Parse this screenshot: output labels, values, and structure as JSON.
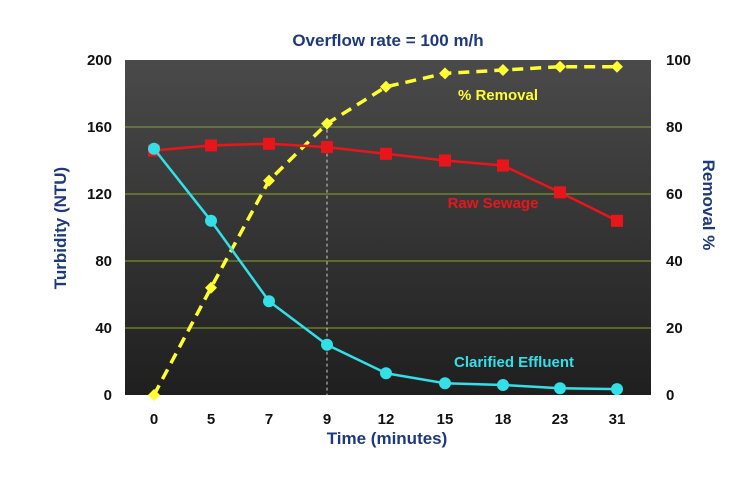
{
  "chart_data": {
    "type": "line",
    "title": "Overflow rate = 100 m/h",
    "xlabel": "Time (minutes)",
    "ylabel_left": "Turbidity (NTU)",
    "ylabel_right": "Removal %",
    "categories": [
      "0",
      "5",
      "7",
      "9",
      "12",
      "15",
      "18",
      "23",
      "31"
    ],
    "ylim_left": [
      0,
      200
    ],
    "yticks_left": [
      "0",
      "40",
      "80",
      "120",
      "160",
      "200"
    ],
    "ylim_right": [
      0,
      100
    ],
    "yticks_right": [
      "0",
      "20",
      "40",
      "60",
      "80",
      "100"
    ],
    "grid": true,
    "reference_line_category": "9",
    "series": [
      {
        "name": "% Removal",
        "axis": "right",
        "color": "#ffff33",
        "line_style": "dashed",
        "marker": "diamond",
        "values": [
          0,
          32,
          64,
          81,
          92,
          96,
          97,
          98,
          98
        ]
      },
      {
        "name": "Raw Sewage",
        "axis": "left",
        "color": "#e8161b",
        "line_style": "solid",
        "marker": "square",
        "values": [
          146,
          149,
          150,
          148,
          144,
          140,
          137,
          121,
          104
        ]
      },
      {
        "name": "Clarified Effluent",
        "axis": "left",
        "color": "#33e0e8",
        "line_style": "solid",
        "marker": "circle",
        "values": [
          147,
          104,
          56,
          30,
          13,
          7,
          6,
          4,
          3.5
        ]
      }
    ]
  }
}
